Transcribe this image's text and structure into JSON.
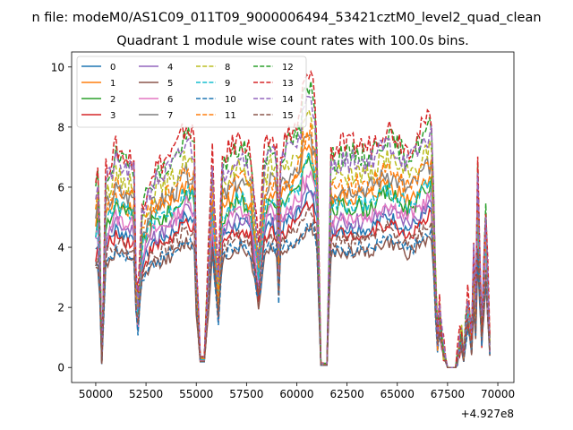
{
  "figure": {
    "suptitle": "n file: modeM0/AS1C09_011T09_9000006494_53421cztM0_level2_quad_clean"
  },
  "chart_data": {
    "type": "line",
    "title": "Quadrant 1 module wise count rates with 100.0s bins.",
    "xlabel": "",
    "ylabel": "",
    "x_offset_label": "+4.927e8",
    "xlim": [
      48800,
      70800
    ],
    "ylim": [
      -0.5,
      10.5
    ],
    "xticks": [
      50000,
      52500,
      55000,
      57500,
      60000,
      62500,
      65000,
      67500,
      70000
    ],
    "xtick_labels": [
      "50000",
      "52500",
      "55000",
      "57500",
      "60000",
      "62500",
      "65000",
      "67500",
      "70000"
    ],
    "yticks": [
      0,
      2,
      4,
      6,
      8,
      10
    ],
    "ytick_labels": [
      "0",
      "2",
      "4",
      "6",
      "8",
      "10"
    ],
    "grid": false,
    "legend": {
      "placement": "top-left",
      "columns": 4
    },
    "envelope": {
      "x": [
        50000,
        50150,
        50300,
        50500,
        51000,
        51500,
        51900,
        52050,
        52300,
        52800,
        53500,
        54000,
        54500,
        54900,
        55000,
        55200,
        55400,
        55800,
        56100,
        56300,
        56700,
        57200,
        57700,
        58100,
        58400,
        58700,
        59000,
        59100,
        59200,
        59500,
        60000,
        60300,
        60700,
        61000,
        61200,
        61300,
        61400,
        61500,
        61700,
        61900,
        62200,
        62500,
        63000,
        63500,
        64000,
        64500,
        65000,
        65500,
        66000,
        66300,
        66700,
        67000,
        67100,
        67250,
        67500,
        67600,
        67900,
        68200,
        68300,
        68500,
        68700,
        68800,
        68900,
        69000,
        69200,
        69400,
        69600
      ],
      "factor": [
        0.85,
        0.95,
        0.03,
        0.9,
        1.0,
        0.96,
        0.95,
        0.2,
        0.75,
        0.9,
        0.95,
        1.0,
        1.1,
        1.05,
        0.5,
        0.05,
        0.05,
        0.98,
        0.4,
        0.95,
        1.0,
        1.05,
        0.98,
        0.55,
        0.98,
        1.05,
        1.0,
        0.6,
        1.0,
        1.05,
        1.1,
        1.15,
        1.2,
        1.05,
        0.02,
        0.02,
        0.02,
        0.02,
        1.0,
        0.98,
        1.02,
        1.0,
        1.02,
        1.0,
        1.05,
        1.1,
        1.05,
        1.0,
        1.05,
        1.1,
        1.15,
        0.15,
        0.3,
        0.12,
        0.0,
        0.0,
        0.0,
        0.2,
        0.05,
        0.35,
        0.15,
        0.55,
        0.3,
        0.95,
        0.2,
        0.75,
        0.13
      ]
    },
    "series": [
      {
        "name": "0",
        "color": "#1f77b4",
        "dash": "solid",
        "base": 4.6
      },
      {
        "name": "1",
        "color": "#ff7f0e",
        "dash": "solid",
        "base": 5.6
      },
      {
        "name": "2",
        "color": "#2ca02c",
        "dash": "solid",
        "base": 5.3
      },
      {
        "name": "3",
        "color": "#d62728",
        "dash": "solid",
        "base": 4.4
      },
      {
        "name": "4",
        "color": "#9467bd",
        "dash": "solid",
        "base": 4.8
      },
      {
        "name": "5",
        "color": "#8c564b",
        "dash": "solid",
        "base": 3.8
      },
      {
        "name": "6",
        "color": "#e377c2",
        "dash": "solid",
        "base": 5.0
      },
      {
        "name": "7",
        "color": "#7f7f7f",
        "dash": "solid",
        "base": 5.9
      },
      {
        "name": "8",
        "color": "#bcbd22",
        "dash": "dashed",
        "base": 6.4
      },
      {
        "name": "9",
        "color": "#17becf",
        "dash": "dashed",
        "base": 5.4
      },
      {
        "name": "10",
        "color": "#1f77b4",
        "dash": "dashed",
        "base": 3.9
      },
      {
        "name": "11",
        "color": "#ff7f0e",
        "dash": "dashed",
        "base": 6.0
      },
      {
        "name": "12",
        "color": "#2ca02c",
        "dash": "dashed",
        "base": 7.0
      },
      {
        "name": "13",
        "color": "#d62728",
        "dash": "dashed",
        "base": 7.3
      },
      {
        "name": "14",
        "color": "#9467bd",
        "dash": "dashed",
        "base": 6.8
      },
      {
        "name": "15",
        "color": "#8c564b",
        "dash": "dashed",
        "base": 4.2
      }
    ]
  }
}
